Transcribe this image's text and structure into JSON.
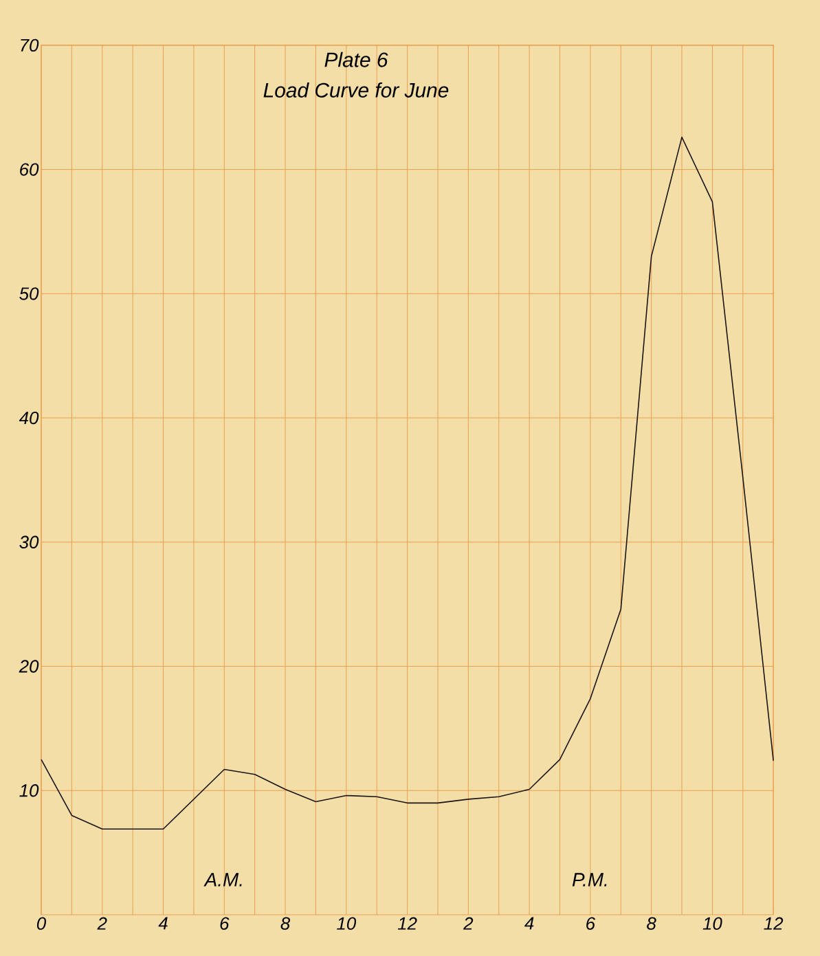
{
  "chart_data": {
    "type": "line",
    "title": "Plate 6",
    "subtitle": "Load Curve for June",
    "annotations": [
      "A.M.",
      "P.M."
    ],
    "categories": [
      "0",
      null,
      "2",
      null,
      "4",
      null,
      "6",
      null,
      "8",
      null,
      "10",
      null,
      "12",
      null,
      "2",
      null,
      "4",
      null,
      "6",
      null,
      "8",
      null,
      "10",
      null,
      "12"
    ],
    "series": [
      {
        "color": "#1a1410",
        "values": [
          12.5,
          8.0,
          6.9,
          6.9,
          6.9,
          9.3,
          11.7,
          11.3,
          10.1,
          9.1,
          9.6,
          9.5,
          9.0,
          9.0,
          9.3,
          9.5,
          10.1,
          12.5,
          17.4,
          24.6,
          53.0,
          62.6,
          57.4,
          35.2,
          12.4
        ]
      }
    ],
    "ylim": [
      0,
      70
    ],
    "yticks": [
      10,
      20,
      30,
      40,
      50,
      60,
      70
    ],
    "grid": true,
    "marker": "none",
    "line_style": "solid"
  }
}
